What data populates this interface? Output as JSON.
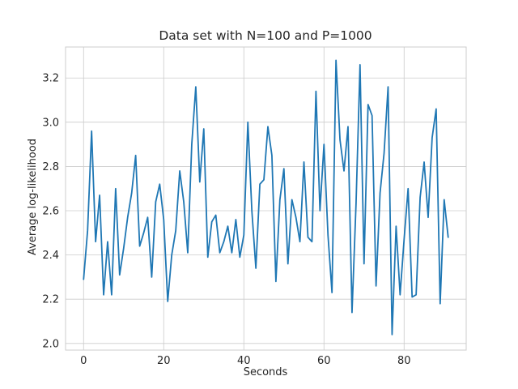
{
  "chart_data": {
    "type": "line",
    "title": "Data set with N=100 and P=1000",
    "xlabel": "Seconds",
    "ylabel": "Average log-likelihood",
    "xlim": [
      -4.5,
      95.5
    ],
    "ylim": [
      1.97,
      3.34
    ],
    "xticks": [
      0,
      20,
      40,
      60,
      80
    ],
    "yticks": [
      2.0,
      2.2,
      2.4,
      2.6,
      2.8,
      3.0,
      3.2
    ],
    "grid": true,
    "line_color": "#1f77b4",
    "x": [
      0,
      1,
      2,
      3,
      4,
      5,
      6,
      7,
      8,
      9,
      10,
      11,
      12,
      13,
      14,
      15,
      16,
      17,
      18,
      19,
      20,
      21,
      22,
      23,
      24,
      25,
      26,
      27,
      28,
      29,
      30,
      31,
      32,
      33,
      34,
      35,
      36,
      37,
      38,
      39,
      40,
      41,
      42,
      43,
      44,
      45,
      46,
      47,
      48,
      49,
      50,
      51,
      52,
      53,
      54,
      55,
      56,
      57,
      58,
      59,
      60,
      61,
      62,
      63,
      64,
      65,
      66,
      67,
      68,
      69,
      70,
      71,
      72,
      73,
      74,
      75,
      76,
      77,
      78,
      79,
      80,
      81,
      82,
      83,
      84,
      85,
      86,
      87,
      88,
      89,
      90,
      91
    ],
    "y": [
      2.29,
      2.51,
      2.96,
      2.46,
      2.67,
      2.22,
      2.46,
      2.22,
      2.7,
      2.31,
      2.43,
      2.57,
      2.68,
      2.85,
      2.44,
      2.5,
      2.57,
      2.3,
      2.64,
      2.72,
      2.56,
      2.19,
      2.4,
      2.51,
      2.78,
      2.64,
      2.41,
      2.9,
      3.16,
      2.73,
      2.97,
      2.39,
      2.55,
      2.58,
      2.41,
      2.46,
      2.53,
      2.41,
      2.56,
      2.39,
      2.49,
      3.0,
      2.6,
      2.34,
      2.72,
      2.74,
      2.98,
      2.85,
      2.28,
      2.65,
      2.79,
      2.36,
      2.65,
      2.57,
      2.46,
      2.82,
      2.48,
      2.46,
      3.14,
      2.6,
      2.9,
      2.49,
      2.23,
      3.28,
      2.92,
      2.78,
      2.98,
      2.14,
      2.63,
      3.26,
      2.36,
      3.08,
      3.03,
      2.26,
      2.68,
      2.86,
      3.16,
      2.04,
      2.53,
      2.22,
      2.47,
      2.7,
      2.21,
      2.22,
      2.66,
      2.82,
      2.57,
      2.93,
      3.06,
      2.18,
      2.65,
      2.48
    ]
  }
}
